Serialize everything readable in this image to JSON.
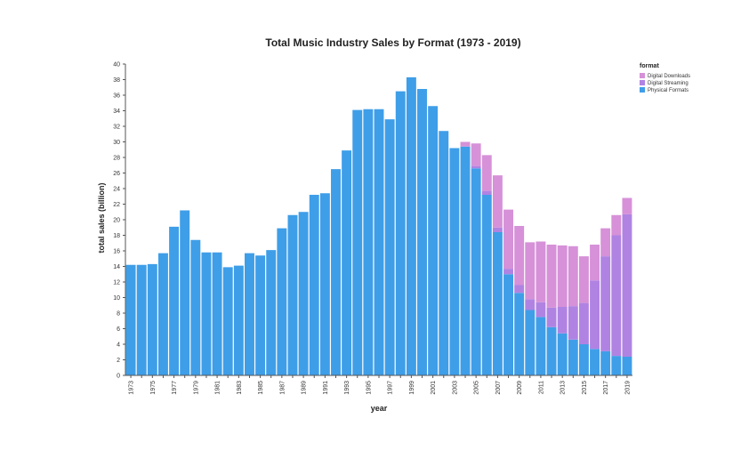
{
  "chart_data": {
    "type": "bar",
    "stacked": true,
    "title": "Total Music Industry Sales by Format (1973 - 2019)",
    "xlabel": "year",
    "ylabel": "total sales (billion)",
    "ylim": [
      0,
      40
    ],
    "yticks": [
      0,
      2,
      4,
      6,
      8,
      10,
      12,
      14,
      16,
      18,
      20,
      22,
      24,
      26,
      28,
      30,
      32,
      34,
      36,
      38,
      40
    ],
    "categories": [
      "1973",
      "1974",
      "1975",
      "1976",
      "1977",
      "1978",
      "1979",
      "1980",
      "1981",
      "1982",
      "1983",
      "1984",
      "1985",
      "1986",
      "1987",
      "1988",
      "1989",
      "1990",
      "1991",
      "1992",
      "1993",
      "1994",
      "1995",
      "1996",
      "1997",
      "1998",
      "1999",
      "2000",
      "2001",
      "2002",
      "2003",
      "2004",
      "2005",
      "2006",
      "2007",
      "2008",
      "2009",
      "2010",
      "2011",
      "2012",
      "2013",
      "2014",
      "2015",
      "2016",
      "2017",
      "2018",
      "2019"
    ],
    "xtick_labels": [
      "1973",
      "",
      "1975",
      "",
      "1977",
      "",
      "1979",
      "",
      "1981",
      "",
      "1983",
      "",
      "1985",
      "",
      "1987",
      "",
      "1989",
      "",
      "1991",
      "",
      "1993",
      "",
      "1995",
      "",
      "1997",
      "",
      "1999",
      "",
      "2001",
      "",
      "2003",
      "",
      "2005",
      "",
      "2007",
      "",
      "2009",
      "",
      "2011",
      "",
      "2013",
      "",
      "2015",
      "",
      "2017",
      "",
      "2019"
    ],
    "legend_title": "format",
    "legend_position": "top-right",
    "grid": false,
    "series": [
      {
        "name": "Physical Formats",
        "color": "#3f9ee8",
        "values": [
          14.2,
          14.2,
          14.3,
          15.7,
          19.1,
          21.2,
          17.4,
          15.8,
          15.8,
          13.9,
          14.1,
          15.7,
          15.4,
          16.1,
          18.9,
          20.6,
          21.0,
          23.2,
          23.4,
          26.5,
          28.9,
          34.1,
          34.2,
          34.2,
          32.9,
          36.5,
          38.3,
          36.8,
          34.6,
          31.4,
          29.2,
          29.4,
          26.6,
          23.2,
          18.4,
          13.0,
          10.6,
          8.4,
          7.5,
          6.2,
          5.4,
          4.6,
          4.0,
          3.4,
          3.1,
          2.5,
          2.4
        ]
      },
      {
        "name": "Digital Streaming",
        "color": "#b083e3",
        "values": [
          0,
          0,
          0,
          0,
          0,
          0,
          0,
          0,
          0,
          0,
          0,
          0,
          0,
          0,
          0,
          0,
          0,
          0,
          0,
          0,
          0,
          0,
          0,
          0,
          0,
          0,
          0,
          0,
          0,
          0,
          0,
          0,
          0.3,
          0.5,
          0.6,
          0.7,
          1.0,
          1.4,
          1.9,
          2.5,
          3.4,
          4.3,
          5.3,
          8.8,
          12.2,
          15.5,
          18.3
        ]
      },
      {
        "name": "Digital Downloads",
        "color": "#d691d8",
        "values": [
          0,
          0,
          0,
          0,
          0,
          0,
          0,
          0,
          0,
          0,
          0,
          0,
          0,
          0,
          0,
          0,
          0,
          0,
          0,
          0,
          0,
          0,
          0,
          0,
          0,
          0,
          0,
          0,
          0,
          0,
          0,
          0.6,
          2.9,
          4.6,
          6.7,
          7.6,
          7.6,
          7.3,
          7.8,
          8.1,
          7.9,
          7.7,
          6.0,
          4.6,
          3.6,
          2.6,
          2.1
        ]
      }
    ]
  }
}
